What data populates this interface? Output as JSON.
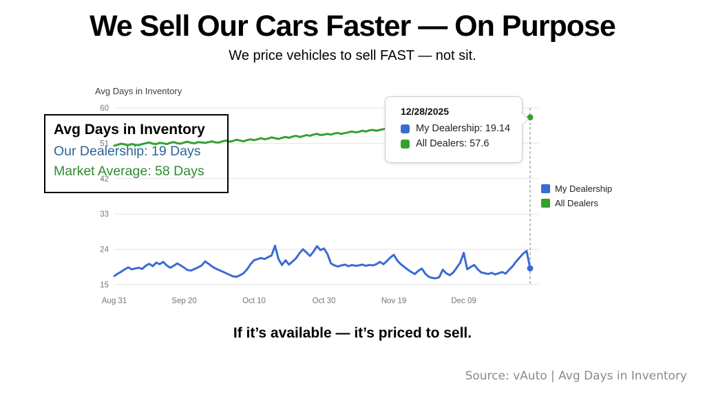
{
  "slide": {
    "title": "We Sell Our Cars Faster — On Purpose",
    "subtitle": "We price vehicles to sell FAST — not sit.",
    "statement": "If it’s available — it’s priced to sell.",
    "source": "Source: vAuto | Avg Days in Inventory"
  },
  "annotation": {
    "title": "Avg Days in Inventory",
    "lines": [
      {
        "text": "Our Dealership: 19 Days",
        "color": "#2a6496"
      },
      {
        "text": "Market Average: 58 Days",
        "color": "#2e8b2e"
      }
    ]
  },
  "tooltip": {
    "date": "12/28/2025",
    "items": [
      {
        "label": "My Dealership: 19.14",
        "color": "#3a6bd2"
      },
      {
        "label": "All Dealers: 57.6",
        "color": "#35a02f"
      }
    ]
  },
  "chart_data": {
    "type": "line",
    "title": "Avg Days in Inventory",
    "xlabel": "",
    "ylabel": "",
    "ylim": [
      15,
      60
    ],
    "grid": true,
    "grid_color": "#e3e3e3",
    "tick_color": "#757575",
    "legend_position": "right",
    "y_ticks": [
      60,
      51,
      42,
      33,
      24,
      15
    ],
    "x_ticks": [
      {
        "label": "Aug 31",
        "day": 0
      },
      {
        "label": "Sep 20",
        "day": 20
      },
      {
        "label": "Oct 10",
        "day": 40
      },
      {
        "label": "Oct 30",
        "day": 60
      },
      {
        "label": "Nov 19",
        "day": 80
      },
      {
        "label": "Dec 09",
        "day": 100
      }
    ],
    "x_range_dates": [
      "Aug 31",
      "Dec 28"
    ],
    "crosshair_day": 119,
    "crosshair_date": "12/28/2025",
    "series": [
      {
        "name": "My Dealership",
        "color": "#3a6bd2",
        "final_value": 19.14,
        "values": [
          17.2,
          17.8,
          18.3,
          18.9,
          19.4,
          18.9,
          19.1,
          19.3,
          19.0,
          19.8,
          20.3,
          19.7,
          20.6,
          20.2,
          20.8,
          19.9,
          19.3,
          19.8,
          20.4,
          19.9,
          19.3,
          18.7,
          18.6,
          19.0,
          19.4,
          19.9,
          20.9,
          20.3,
          19.6,
          19.1,
          18.7,
          18.3,
          17.9,
          17.5,
          17.1,
          17.0,
          17.4,
          17.9,
          18.9,
          20.2,
          21.2,
          21.5,
          21.8,
          21.5,
          22.0,
          22.4,
          24.9,
          21.5,
          20.0,
          21.2,
          20.1,
          20.9,
          21.7,
          23.0,
          24.0,
          23.2,
          22.3,
          23.4,
          24.8,
          23.8,
          24.2,
          22.8,
          20.4,
          19.9,
          19.6,
          19.9,
          20.1,
          19.7,
          20.0,
          19.8,
          19.9,
          20.1,
          19.8,
          20.0,
          19.9,
          20.2,
          20.8,
          20.2,
          21.0,
          21.9,
          22.6,
          21.1,
          20.2,
          19.5,
          18.8,
          18.2,
          17.7,
          18.5,
          19.1,
          17.8,
          17.0,
          16.7,
          16.6,
          16.9,
          18.8,
          17.9,
          17.4,
          18.1,
          19.3,
          20.6,
          23.1,
          18.9,
          19.5,
          20.0,
          18.9,
          18.1,
          17.9,
          17.7,
          18.0,
          17.6,
          17.9,
          18.2,
          17.8,
          18.8,
          19.7,
          20.9,
          21.9,
          22.9,
          23.6,
          19.14
        ]
      },
      {
        "name": "All Dealers",
        "color": "#35a02f",
        "final_value": 57.6,
        "values": [
          50.4,
          50.6,
          50.9,
          50.7,
          50.5,
          50.8,
          50.6,
          50.5,
          50.8,
          51.0,
          51.2,
          50.9,
          50.8,
          51.1,
          51.0,
          50.8,
          51.1,
          51.3,
          51.0,
          50.9,
          51.2,
          51.4,
          51.1,
          51.0,
          51.3,
          51.2,
          51.1,
          51.3,
          51.5,
          51.2,
          51.2,
          51.5,
          51.7,
          51.4,
          51.6,
          51.9,
          51.7,
          51.5,
          51.8,
          52.0,
          51.8,
          52.0,
          52.3,
          52.0,
          52.2,
          52.5,
          52.3,
          52.1,
          52.4,
          52.6,
          52.4,
          52.7,
          52.9,
          52.6,
          52.8,
          53.1,
          52.9,
          53.2,
          53.4,
          53.1,
          53.2,
          53.4,
          53.2,
          53.5,
          53.6,
          53.4,
          53.6,
          53.8,
          54.0,
          53.8,
          53.9,
          54.2,
          54.0,
          54.3,
          54.4,
          54.2,
          54.4,
          54.6,
          54.8,
          54.5,
          54.7,
          55.0,
          54.8,
          55.1,
          55.3,
          55.0,
          55.2,
          55.5,
          55.7,
          55.4,
          55.6,
          55.9,
          55.7,
          56.0,
          55.8,
          56.1,
          55.9,
          56.2,
          56.0,
          56.3,
          56.1,
          56.4,
          56.2,
          56.5,
          56.3,
          56.6,
          56.4,
          56.7,
          56.5,
          56.8,
          56.6,
          56.9,
          56.7,
          57.0,
          56.8,
          57.1,
          56.9,
          57.2,
          57.3,
          57.6
        ]
      }
    ]
  }
}
